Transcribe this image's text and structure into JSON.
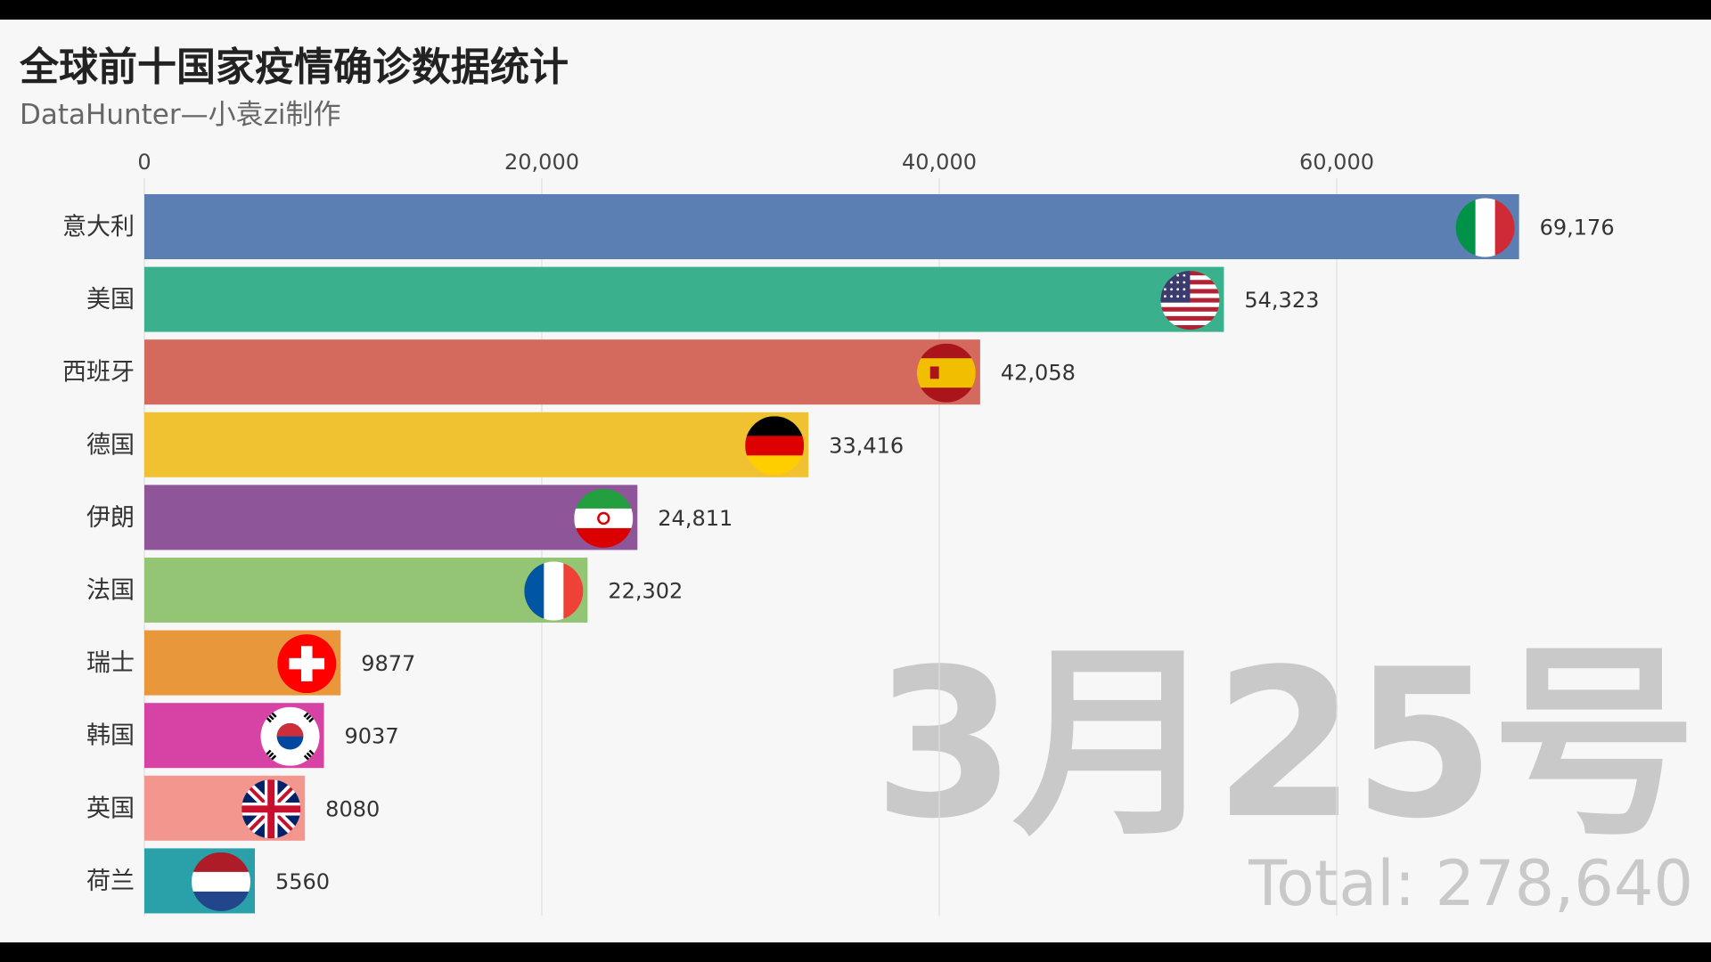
{
  "chart_data": {
    "type": "bar",
    "orientation": "horizontal",
    "title": "全球前十国家疫情确诊数据统计",
    "subtitle": "DataHunter—小袁zi制作",
    "categories": [
      "意大利",
      "美国",
      "西班牙",
      "德国",
      "伊朗",
      "法国",
      "瑞士",
      "韩国",
      "英国",
      "荷兰"
    ],
    "values": [
      69176,
      54323,
      42058,
      33416,
      24811,
      22302,
      9877,
      9037,
      8080,
      5560
    ],
    "value_labels": [
      "69,176",
      "54,323",
      "42,058",
      "33,416",
      "24,811",
      "22,302",
      "9877",
      "9037",
      "8080",
      "5560"
    ],
    "xlim": [
      0,
      75000
    ],
    "x_ticks": [
      0,
      20000,
      40000,
      60000
    ],
    "x_tick_labels": [
      "0",
      "20,000",
      "40,000",
      "60,000"
    ],
    "axis_position": "top",
    "grid": true,
    "colors": [
      "#5b7fb2",
      "#3ab08c",
      "#d4695e",
      "#f0c232",
      "#8e5699",
      "#93c575",
      "#e8973a",
      "#d742a5",
      "#f3968d",
      "#2aa0a8"
    ],
    "flag_icons": [
      "italy-flag-icon",
      "usa-flag-icon",
      "spain-flag-icon",
      "germany-flag-icon",
      "iran-flag-icon",
      "france-flag-icon",
      "switzerland-flag-icon",
      "south-korea-flag-icon",
      "uk-flag-icon",
      "netherlands-flag-icon"
    ],
    "date_label": "3月25号",
    "total_label": "Total: 278,640"
  }
}
